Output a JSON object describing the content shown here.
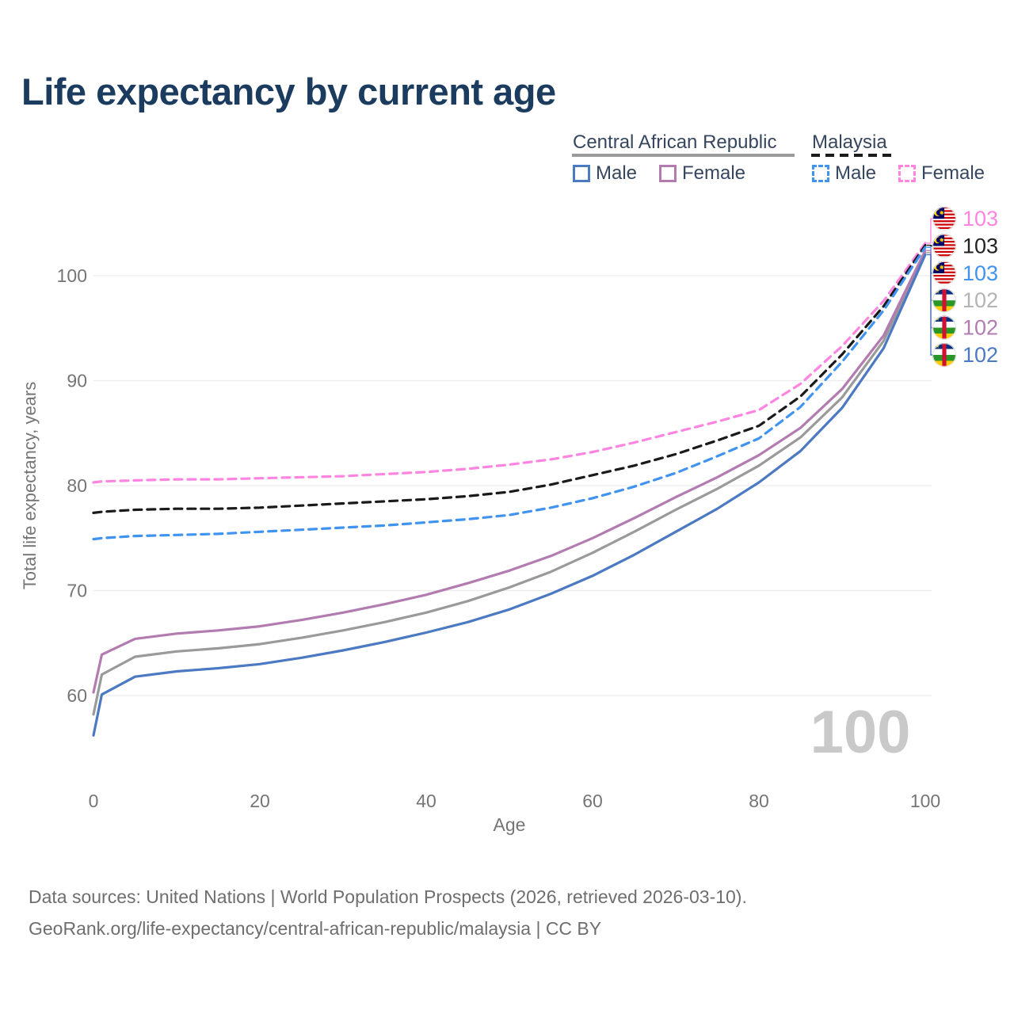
{
  "title": "Life expectancy by current age",
  "watermark_age": "100",
  "legend": {
    "groups": [
      {
        "label": "Central African Republic",
        "line_style": "solid",
        "underline_color": "#9a9a9a",
        "items": [
          {
            "label": "Male",
            "color": "#4b79c2"
          },
          {
            "label": "Female",
            "color": "#b27cb0"
          }
        ]
      },
      {
        "label": "Malaysia",
        "line_style": "dashed",
        "underline_color": "#1a1a1a",
        "items": [
          {
            "label": "Male",
            "color": "#4193f0"
          },
          {
            "label": "Female",
            "color": "#ff85e0"
          }
        ]
      }
    ]
  },
  "footer": {
    "line1": "Data sources: United Nations | World Population Prospects (2026, retrieved 2026-03-10).",
    "line2": "GeoRank.org/life-expectancy/central-african-republic/malaysia | CC BY"
  },
  "chart_data": {
    "type": "line",
    "title": "Life expectancy by current age",
    "xlabel": "Age",
    "ylabel": "Total life expectancy, years",
    "x_ticks": [
      0,
      20,
      40,
      60,
      80,
      100
    ],
    "y_ticks": [
      60,
      70,
      80,
      90,
      100
    ],
    "xlim": [
      0,
      100
    ],
    "ylim": [
      60,
      100
    ],
    "grid": "horizontal",
    "legend_position": "top-right",
    "x": [
      0,
      1,
      5,
      10,
      15,
      20,
      25,
      30,
      35,
      40,
      45,
      50,
      55,
      60,
      65,
      70,
      75,
      80,
      85,
      90,
      95,
      100
    ],
    "series": [
      {
        "id": "malaysia-female",
        "name": "Malaysia Female",
        "country": "Malaysia",
        "sex": "Female",
        "color": "#ff85e0",
        "label_color": "#ff85e0",
        "dashed": true,
        "flag": "malaysia",
        "end_label": "103",
        "values": [
          80.3,
          80.4,
          80.5,
          80.6,
          80.6,
          80.7,
          80.8,
          80.9,
          81.1,
          81.3,
          81.6,
          82.0,
          82.5,
          83.2,
          84.1,
          85.1,
          86.1,
          87.2,
          89.7,
          93.3,
          97.6,
          103.1
        ]
      },
      {
        "id": "malaysia-both-sexes",
        "name": "Malaysia Both sexes",
        "country": "Malaysia",
        "sex": "Both",
        "color": "#1a1a1a",
        "label_color": "#222222",
        "dashed": true,
        "flag": "malaysia",
        "end_label": "103",
        "values": [
          77.4,
          77.5,
          77.7,
          77.8,
          77.8,
          77.9,
          78.1,
          78.3,
          78.5,
          78.7,
          79.0,
          79.4,
          80.1,
          81.0,
          81.9,
          83.0,
          84.3,
          85.7,
          88.5,
          92.5,
          97.1,
          102.9
        ]
      },
      {
        "id": "malaysia-male",
        "name": "Malaysia Male",
        "country": "Malaysia",
        "sex": "Male",
        "color": "#4193f0",
        "label_color": "#4193f0",
        "dashed": true,
        "flag": "malaysia",
        "end_label": "103",
        "values": [
          74.9,
          75.0,
          75.2,
          75.3,
          75.4,
          75.6,
          75.8,
          76.0,
          76.2,
          76.5,
          76.8,
          77.2,
          77.9,
          78.8,
          79.9,
          81.2,
          82.8,
          84.5,
          87.5,
          91.8,
          96.7,
          102.7
        ]
      },
      {
        "id": "central-african-republic-both-sexes",
        "name": "Central African Republic Both sexes",
        "country": "Central African Republic",
        "sex": "Both",
        "color": "#9a9a9a",
        "label_color": "#b3b3b3",
        "dashed": false,
        "flag": "central-african-republic",
        "end_label": "102",
        "values": [
          58.2,
          62.0,
          63.7,
          64.2,
          64.5,
          64.9,
          65.5,
          66.2,
          67.0,
          67.9,
          69.0,
          70.3,
          71.8,
          73.6,
          75.6,
          77.7,
          79.7,
          81.9,
          84.6,
          88.4,
          93.8,
          102.2
        ]
      },
      {
        "id": "central-african-republic-female",
        "name": "Central African Republic Female",
        "country": "Central African Republic",
        "sex": "Female",
        "color": "#b27cb0",
        "label_color": "#b27cb0",
        "dashed": false,
        "flag": "central-african-republic",
        "end_label": "102",
        "values": [
          60.3,
          63.9,
          65.4,
          65.9,
          66.2,
          66.6,
          67.2,
          67.9,
          68.7,
          69.6,
          70.7,
          71.9,
          73.3,
          75.0,
          76.9,
          78.9,
          80.8,
          82.9,
          85.5,
          89.2,
          94.3,
          102.4
        ]
      },
      {
        "id": "central-african-republic-male",
        "name": "Central African Republic Male",
        "country": "Central African Republic",
        "sex": "Male",
        "color": "#4b79c2",
        "label_color": "#4b79c2",
        "dashed": false,
        "flag": "central-african-republic",
        "end_label": "102",
        "values": [
          56.2,
          60.1,
          61.8,
          62.3,
          62.6,
          63.0,
          63.6,
          64.3,
          65.1,
          66.0,
          67.0,
          68.2,
          69.7,
          71.4,
          73.4,
          75.6,
          77.8,
          80.3,
          83.3,
          87.4,
          93.1,
          102.0
        ]
      }
    ]
  }
}
